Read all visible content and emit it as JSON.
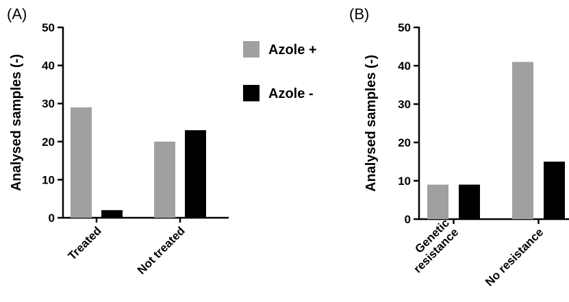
{
  "colors": {
    "azole_plus": "#a0a0a0",
    "azole_minus": "#000000"
  },
  "legend": {
    "placement": "between-panels",
    "items": [
      {
        "label": "Azole +",
        "color": "#a0a0a0"
      },
      {
        "label": "Azole -",
        "color": "#000000"
      }
    ]
  },
  "chart_data": [
    {
      "type": "bar",
      "panel_label": "(A)",
      "ylabel": "Analysed samples (-)",
      "ylim": [
        0,
        50
      ],
      "yticks": [
        "0",
        "10",
        "20",
        "30",
        "40",
        "50"
      ],
      "categories": [
        [
          "Treated"
        ],
        [
          "Not treated"
        ]
      ],
      "series": [
        {
          "name": "Azole +",
          "values": [
            29,
            20
          ]
        },
        {
          "name": "Azole -",
          "values": [
            2,
            23
          ]
        }
      ]
    },
    {
      "type": "bar",
      "panel_label": "(B)",
      "ylabel": "Analysed samples (-)",
      "ylim": [
        0,
        50
      ],
      "yticks": [
        "0",
        "10",
        "20",
        "30",
        "40",
        "50"
      ],
      "categories": [
        [
          "Genetic",
          "resistance"
        ],
        [
          "No resistance"
        ]
      ],
      "series": [
        {
          "name": "Azole +",
          "values": [
            9,
            41
          ]
        },
        {
          "name": "Azole -",
          "values": [
            9,
            15
          ]
        }
      ]
    }
  ]
}
